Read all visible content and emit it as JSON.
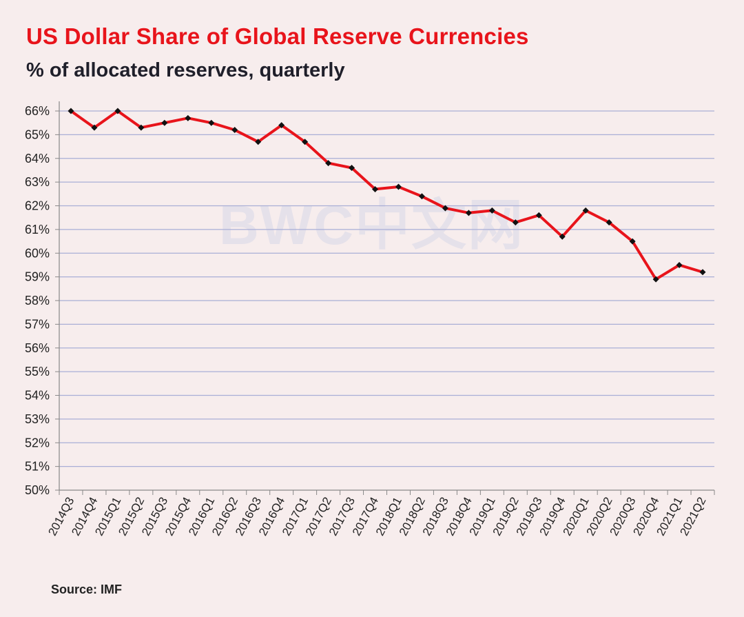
{
  "chart_data": {
    "type": "line",
    "title": "US Dollar  Share  of Global  Reserve  Currencies",
    "subtitle": "% of allocated reserves, quarterly",
    "source": "Source: IMF",
    "watermark": "BWC中文网",
    "xlabel": "",
    "ylabel": "",
    "ylim": [
      50,
      66
    ],
    "yticks": [
      "50%",
      "51%",
      "52%",
      "53%",
      "54%",
      "55%",
      "56%",
      "57%",
      "58%",
      "59%",
      "60%",
      "61%",
      "62%",
      "63%",
      "64%",
      "65%",
      "66%"
    ],
    "grid": true,
    "categories": [
      "2014Q3",
      "2014Q4",
      "2015Q1",
      "2015Q2",
      "2015Q3",
      "2015Q4",
      "2016Q1",
      "2016Q2",
      "2016Q3",
      "2016Q4",
      "2017Q1",
      "2017Q2",
      "2017Q3",
      "2017Q4",
      "2018Q1",
      "2018Q2",
      "2018Q3",
      "2018Q4",
      "2019Q1",
      "2019Q2",
      "2019Q3",
      "2019Q4",
      "2020Q1",
      "2020Q2",
      "2020Q3",
      "2020Q4",
      "2021Q1",
      "2021Q2"
    ],
    "series": [
      {
        "name": "US Dollar share",
        "color": "#e8141b",
        "values": [
          66.0,
          65.3,
          66.0,
          65.3,
          65.5,
          65.7,
          65.5,
          65.2,
          64.7,
          65.4,
          64.7,
          63.8,
          63.6,
          62.7,
          62.8,
          62.4,
          61.9,
          61.7,
          61.8,
          61.3,
          61.6,
          60.7,
          61.8,
          61.3,
          60.5,
          58.9,
          59.5,
          59.2
        ]
      }
    ]
  }
}
